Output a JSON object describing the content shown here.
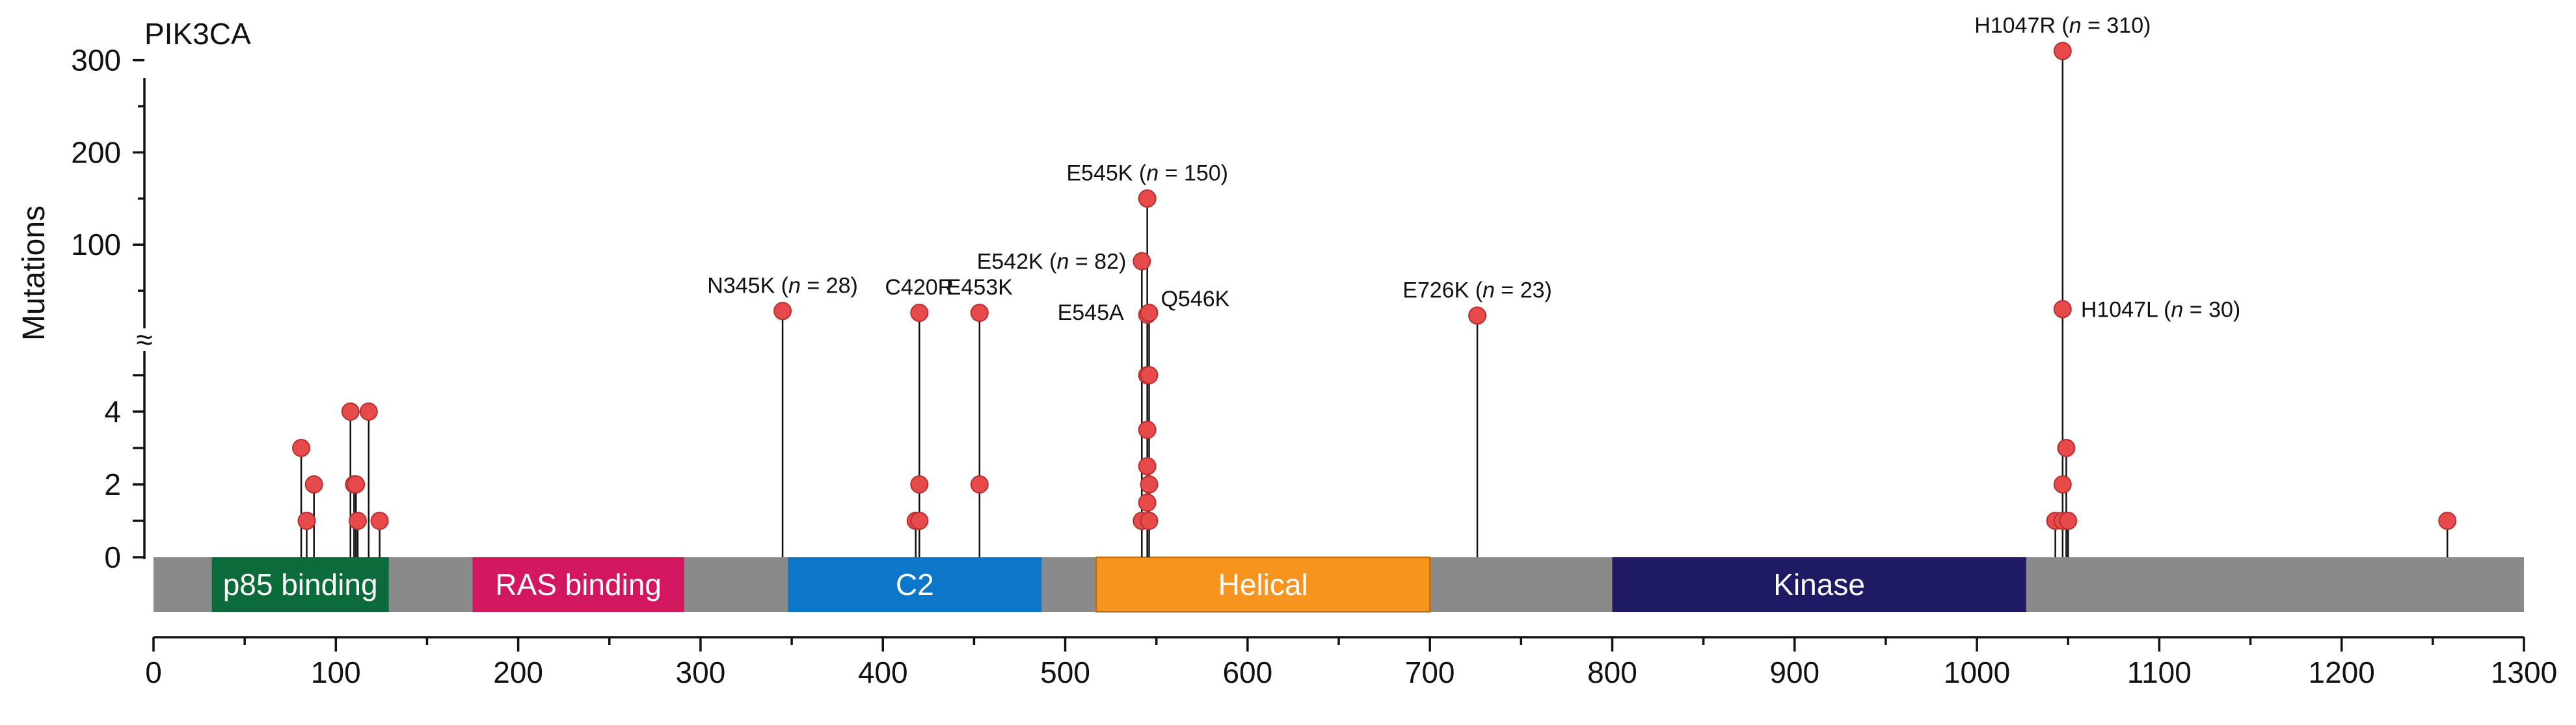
{
  "chart_data": {
    "type": "lollipop",
    "title": "PIK3CA",
    "ylabel": "Mutations",
    "x_range": [
      0,
      1300
    ],
    "x_ticks": [
      "0",
      "100",
      "200",
      "300",
      "400",
      "500",
      "600",
      "700",
      "800",
      "900",
      "1000",
      "1100",
      "1200",
      "1300"
    ],
    "y_ticks_lower": [
      "0",
      "2",
      "4"
    ],
    "y_ticks_upper": [
      "100",
      "200",
      "300"
    ],
    "y_break_symbol": "≈",
    "protein_length": 1300,
    "domains": [
      {
        "name": "p85 binding",
        "start": 32,
        "end": 129,
        "color": "#0b6b3a"
      },
      {
        "name": "RAS binding",
        "start": 175,
        "end": 291,
        "color": "#d3175f"
      },
      {
        "name": "C2",
        "start": 348,
        "end": 487,
        "color": "#0c76c8"
      },
      {
        "name": "Helical",
        "start": 517,
        "end": 700,
        "color": "#f7941d"
      },
      {
        "name": "Kinase",
        "start": 800,
        "end": 1027,
        "color": "#1e1a63"
      }
    ],
    "backbone_color": "#8a8a8a",
    "marker_color": "#e74a4a",
    "mutations": [
      {
        "pos": 81,
        "count": 3
      },
      {
        "pos": 84,
        "count": 1
      },
      {
        "pos": 88,
        "count": 2
      },
      {
        "pos": 108,
        "count": 4
      },
      {
        "pos": 110,
        "count": 2
      },
      {
        "pos": 111,
        "count": 2
      },
      {
        "pos": 112,
        "count": 1
      },
      {
        "pos": 118,
        "count": 4
      },
      {
        "pos": 124,
        "count": 1
      },
      {
        "pos": 345,
        "count": 28
      },
      {
        "pos": 418,
        "count": 1
      },
      {
        "pos": 420,
        "count": 1
      },
      {
        "pos": 420,
        "count": 2
      },
      {
        "pos": 420,
        "count": 26
      },
      {
        "pos": 453,
        "count": 2
      },
      {
        "pos": 453,
        "count": 26
      },
      {
        "pos": 542,
        "count": 1
      },
      {
        "pos": 542,
        "count": 82
      },
      {
        "pos": 545,
        "count": 3.5
      },
      {
        "pos": 545,
        "count": 2.5
      },
      {
        "pos": 545,
        "count": 1.5
      },
      {
        "pos": 545,
        "count": 5
      },
      {
        "pos": 545,
        "count": 150
      },
      {
        "pos": 545,
        "count": 24
      },
      {
        "pos": 546,
        "count": 26
      },
      {
        "pos": 546,
        "count": 2
      },
      {
        "pos": 546,
        "count": 1
      },
      {
        "pos": 546,
        "count": 5
      },
      {
        "pos": 726,
        "count": 23
      },
      {
        "pos": 1043,
        "count": 1
      },
      {
        "pos": 1047,
        "count": 1
      },
      {
        "pos": 1047,
        "count": 2
      },
      {
        "pos": 1047,
        "count": 30
      },
      {
        "pos": 1047,
        "count": 310
      },
      {
        "pos": 1049,
        "count": 3
      },
      {
        "pos": 1050,
        "count": 1
      },
      {
        "pos": 1258,
        "count": 1
      }
    ],
    "annotations": [
      {
        "pos": 1047,
        "count": 310,
        "name": "H1047R",
        "n_text": "n",
        "rest": " = 310)",
        "anchor": "middle",
        "side": "top"
      },
      {
        "pos": 545,
        "count": 150,
        "name": "E545K",
        "n_text": "n",
        "rest": " = 150)",
        "anchor": "middle",
        "side": "top"
      },
      {
        "pos": 542,
        "count": 82,
        "name": "E542K",
        "n_text": "n",
        "rest": " = 82)",
        "anchor": "end",
        "side": "left"
      },
      {
        "pos": 345,
        "count": 28,
        "name": "N345K",
        "n_text": "n",
        "rest": " = 28)",
        "anchor": "middle",
        "side": "top"
      },
      {
        "pos": 726,
        "count": 23,
        "name": "E726K",
        "n_text": "n",
        "rest": " = 23)",
        "anchor": "middle",
        "side": "top"
      },
      {
        "pos": 1047,
        "count": 30,
        "name": "H1047L",
        "n_text": "n",
        "rest": " = 30)",
        "anchor": "start",
        "side": "right"
      }
    ],
    "simple_labels": [
      {
        "pos": 420,
        "count": 26,
        "text": "C420R",
        "side": "top"
      },
      {
        "pos": 453,
        "count": 26,
        "text": "E453K",
        "side": "top"
      },
      {
        "pos": 545,
        "count": 24,
        "text": "E545A",
        "side": "left"
      },
      {
        "pos": 546,
        "count": 26,
        "text": "Q546K",
        "side": "right"
      }
    ]
  }
}
